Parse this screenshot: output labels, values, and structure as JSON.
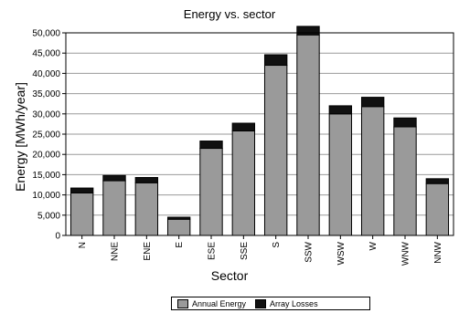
{
  "chart_data": {
    "type": "bar",
    "stacked": true,
    "title": "Energy vs. sector",
    "xlabel": "Sector",
    "ylabel": "Energy [MWh/year]",
    "ylim": [
      0,
      50000
    ],
    "yticks": [
      "0",
      "5,000",
      "10,000",
      "15,000",
      "20,000",
      "25,000",
      "30,000",
      "35,000",
      "40,000",
      "45,000",
      "50,000"
    ],
    "ytick_values": [
      0,
      5000,
      10000,
      15000,
      20000,
      25000,
      30000,
      35000,
      40000,
      45000,
      50000
    ],
    "grid": "horizontal",
    "legend_position": "bottom",
    "categories": [
      "N",
      "NNE",
      "ENE",
      "E",
      "ESE",
      "SSE",
      "S",
      "SSW",
      "WSW",
      "W",
      "WNW",
      "NNW"
    ],
    "series": [
      {
        "name": "Annual Energy",
        "color": "#9a9a9a",
        "values": [
          10500,
          13500,
          13000,
          4000,
          21500,
          25800,
          42000,
          49500,
          30000,
          31800,
          26800,
          12800
        ]
      },
      {
        "name": "Array Losses",
        "color": "#111111",
        "values": [
          1200,
          1300,
          1300,
          500,
          1800,
          1900,
          2600,
          2100,
          2000,
          2300,
          2200,
          1200
        ]
      }
    ]
  }
}
